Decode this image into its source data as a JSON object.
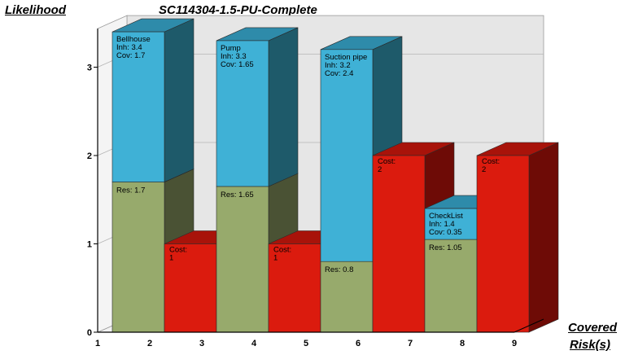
{
  "chart_data": {
    "type": "bar",
    "title": "SC114304-1.5-PU-Complete",
    "ylabel": "Likelihood",
    "xlabel_line1": "Covered",
    "xlabel_line2": "Risk(s)",
    "ylim": [
      0,
      3.4
    ],
    "y_ticks": [
      "0",
      "1",
      "2",
      "3"
    ],
    "x_ticks": [
      "1",
      "2",
      "3",
      "4",
      "5",
      "6",
      "7",
      "8",
      "9"
    ],
    "bars": [
      {
        "kind": "risk",
        "name": "Bellhouse",
        "inh_label": "Inh: 3.4",
        "cov_label": "Cov: 1.7",
        "res_label": "Res: 1.7",
        "inh": 3.4,
        "res": 1.7
      },
      {
        "kind": "cost",
        "label": "Cost:",
        "value_label": "1",
        "value": 1
      },
      {
        "kind": "risk",
        "name": "Pump",
        "inh_label": "Inh: 3.3",
        "cov_label": "Cov: 1.65",
        "res_label": "Res: 1.65",
        "inh": 3.3,
        "res": 1.65
      },
      {
        "kind": "cost",
        "label": "Cost:",
        "value_label": "1",
        "value": 1
      },
      {
        "kind": "risk",
        "name": "Suction pipe",
        "inh_label": "Inh: 3.2",
        "cov_label": "Cov: 2.4",
        "res_label": "Res: 0.8",
        "inh": 3.2,
        "res": 0.8
      },
      {
        "kind": "cost",
        "label": "Cost:",
        "value_label": "2",
        "value": 2
      },
      {
        "kind": "risk",
        "name": "CheckList",
        "inh_label": "Inh: 1.4",
        "cov_label": "Cov: 0.35",
        "res_label": "Res: 1.05",
        "inh": 1.4,
        "res": 1.05
      },
      {
        "kind": "cost",
        "label": "Cost:",
        "value_label": "2",
        "value": 2
      }
    ],
    "colors": {
      "res_front": "#97AA6C",
      "res_side": "#4A5234",
      "res_top": "#7A8C55",
      "cov_front": "#3FB1D6",
      "cov_side": "#1E5A6A",
      "cov_top": "#2E8BAA",
      "cost_front": "#DB1B0E",
      "cost_side": "#6E0B06",
      "cost_top": "#A8130A"
    }
  }
}
